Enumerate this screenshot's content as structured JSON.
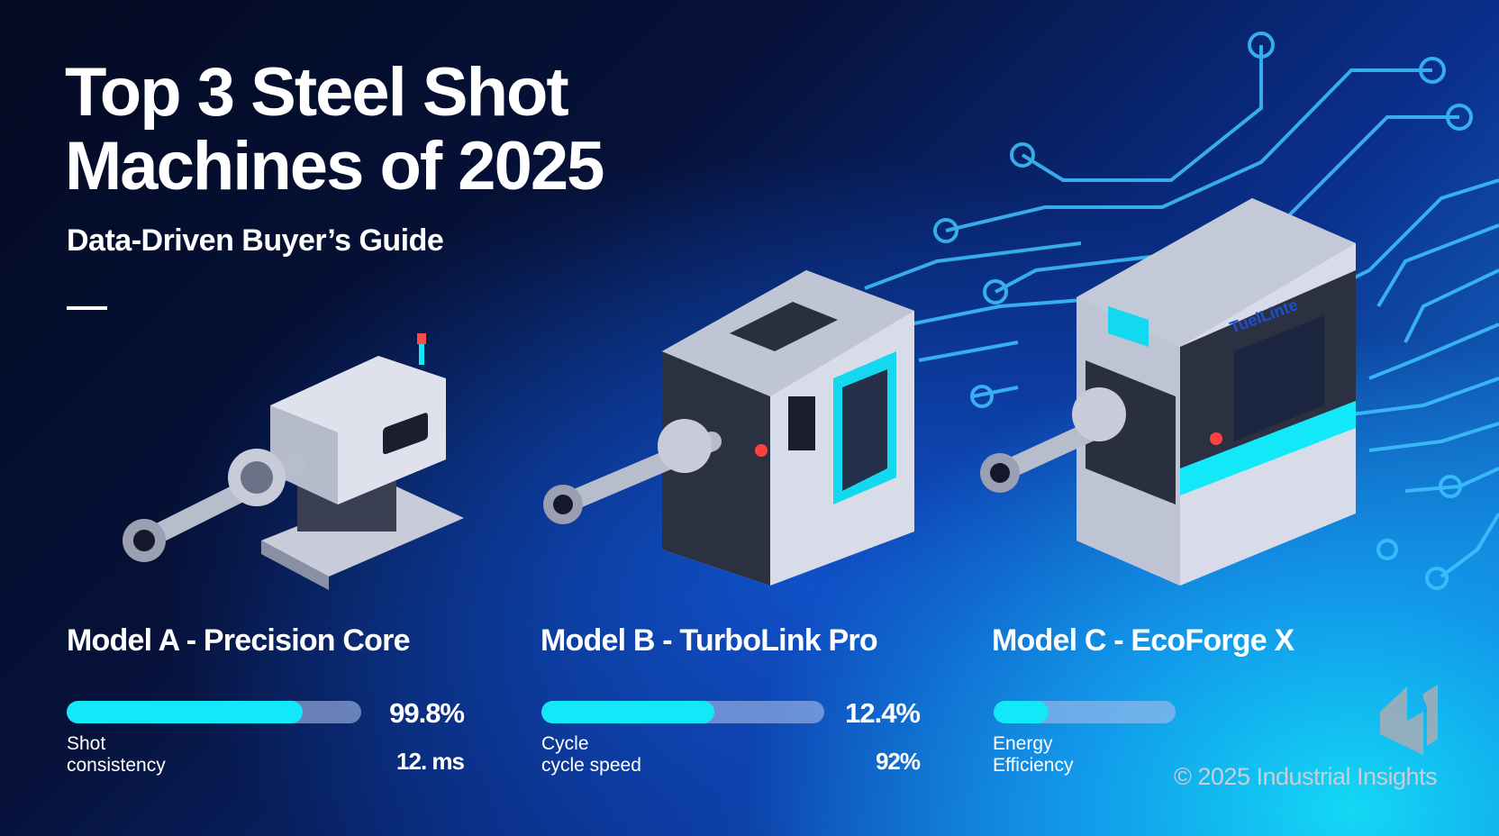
{
  "title_line1": "Top 3 Steel Shot",
  "title_line2": "Machines of 2025",
  "subtitle": "Data-Driven Buyer’s Guide",
  "machine_c_brand": "TuelLinte",
  "models": [
    {
      "name": "Model A - Precision Core",
      "bar_fill_percent": 80,
      "value": "99.8%",
      "label_line1": "Shot",
      "label_line2": "consistency",
      "value2": "12. ms"
    },
    {
      "name": "Model B - TurboLink Pro",
      "bar_fill_percent": 61,
      "value": "12.4%",
      "label_line1": "Cycle",
      "label_line2": "cycle speed",
      "value2": "92%"
    },
    {
      "name": "Model C - EcoForge X",
      "bar_fill_percent": 30,
      "label_line1": "Energy",
      "label_line2": "Efficiency"
    }
  ],
  "copyright": "© 2025 Industrial Insights",
  "colors": {
    "accent": "#12e8f8",
    "bar_track": "#9db0e0",
    "background_dark": "#06123a",
    "background_light": "#13d8f5"
  }
}
